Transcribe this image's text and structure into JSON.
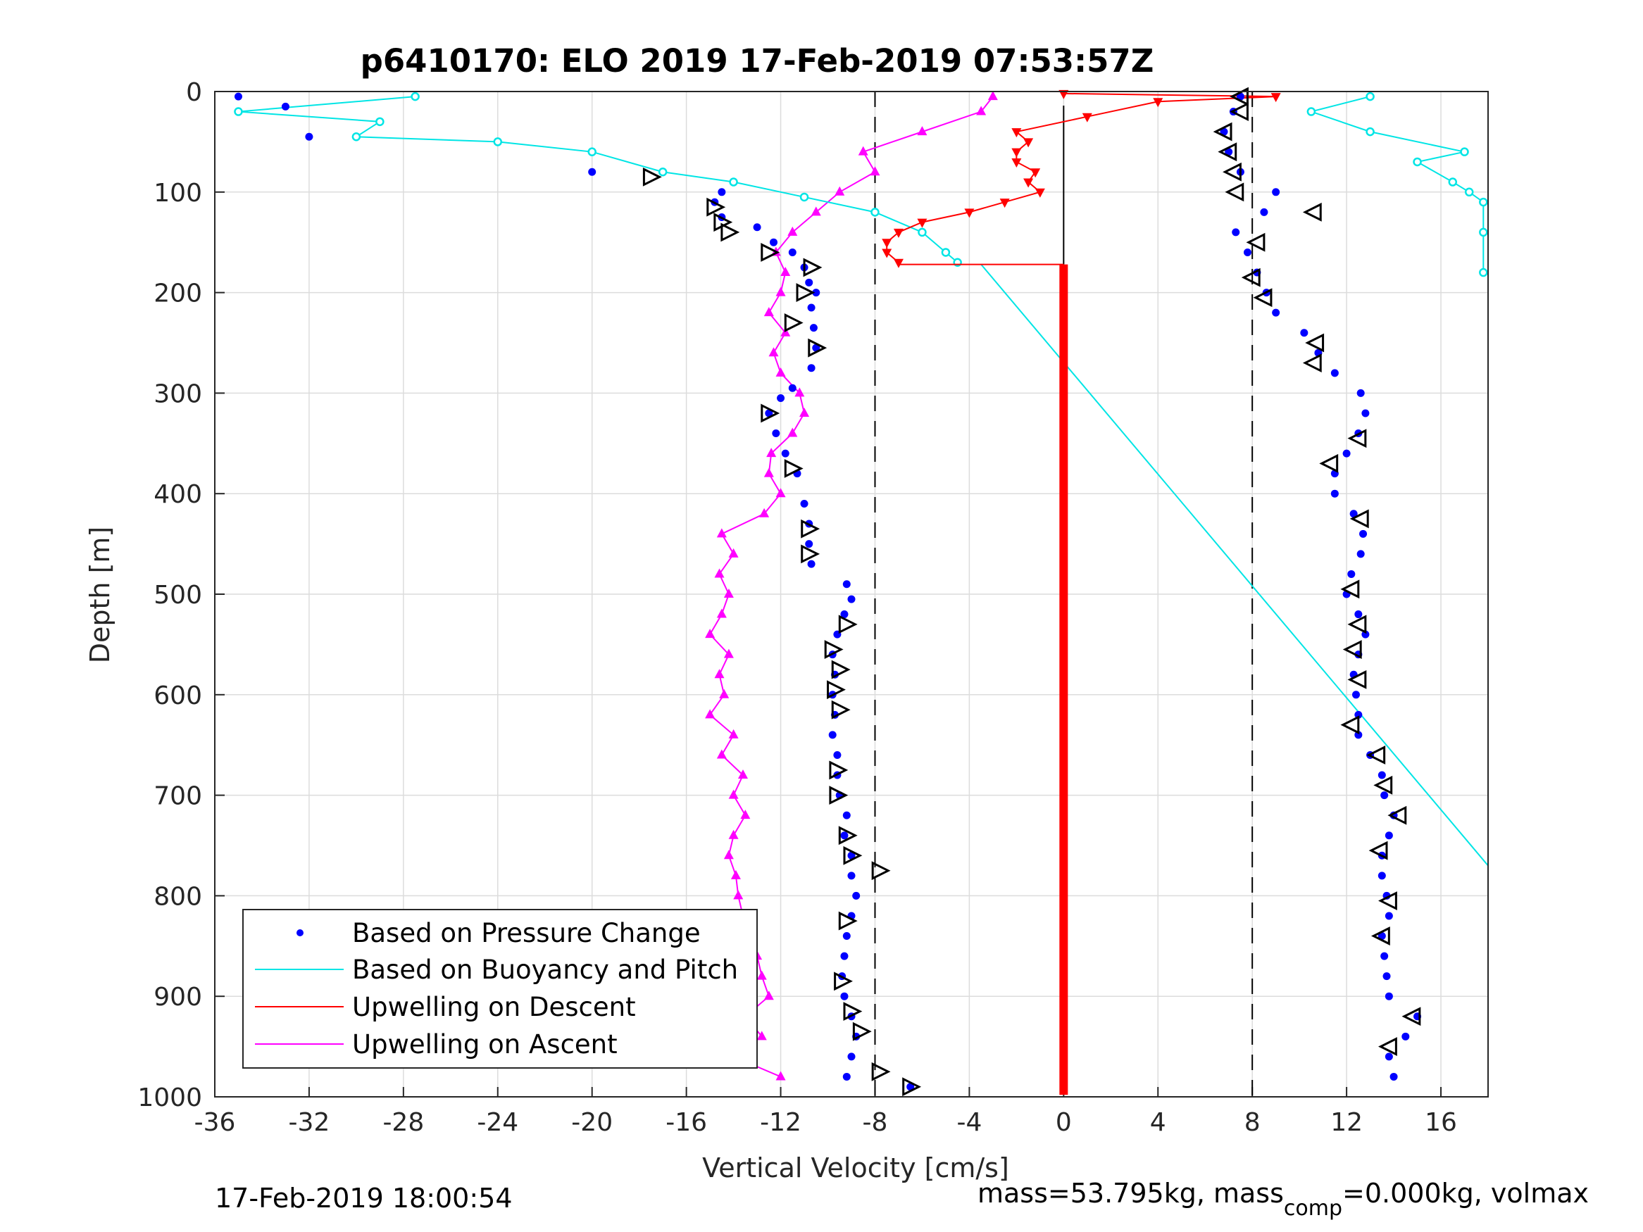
{
  "chart_data": {
    "type": "scatter",
    "title": "p6410170: ELO 2019 17-Feb-2019 07:53:57Z",
    "xlabel": "Vertical Velocity [cm/s]",
    "ylabel": "Depth [m]",
    "xlim": [
      -36,
      18
    ],
    "ylim": [
      0,
      1000
    ],
    "y_reversed": true,
    "grid": true,
    "legend_placement": "bottom-left",
    "xticks": [
      -36,
      -32,
      -28,
      -24,
      -20,
      -16,
      -12,
      -8,
      -4,
      0,
      4,
      8,
      12,
      16
    ],
    "yticks": [
      0,
      100,
      200,
      300,
      400,
      500,
      600,
      700,
      800,
      900,
      1000
    ],
    "reference_lines_x": [
      -8,
      0,
      8
    ],
    "colors": {
      "pressure": "#0000ff",
      "buoyancy": "#00e5e5",
      "upwelling_descent": "#ff0000",
      "upwelling_ascent": "#ff00ff"
    },
    "series": [
      {
        "name": "Based on Pressure Change",
        "marker": "dot",
        "descent": {
          "depth": [
            5,
            15,
            45,
            80,
            100,
            110,
            125,
            135,
            150,
            160,
            175,
            190,
            200,
            215,
            235,
            255,
            275,
            295,
            305,
            320,
            340,
            360,
            380,
            410,
            430,
            450,
            470,
            490,
            505,
            520,
            540,
            560,
            580,
            600,
            620,
            640,
            660,
            680,
            700,
            720,
            740,
            760,
            780,
            800,
            820,
            840,
            860,
            880,
            900,
            920,
            940,
            960,
            980,
            990
          ],
          "velocity": [
            -35,
            -33,
            -32,
            -20,
            -14.5,
            -14.8,
            -14.5,
            -13,
            -12.3,
            -11.5,
            -11,
            -10.8,
            -10.5,
            -10.7,
            -10.6,
            -10.5,
            -10.7,
            -11.5,
            -12,
            -12.5,
            -12.2,
            -11.8,
            -11.3,
            -11,
            -10.8,
            -10.8,
            -10.7,
            -9.2,
            -9,
            -9.3,
            -9.6,
            -9.8,
            -9.7,
            -9.8,
            -9.7,
            -9.8,
            -9.6,
            -9.6,
            -9.5,
            -9.2,
            -9.3,
            -9,
            -9,
            -8.8,
            -9,
            -9.2,
            -9.3,
            -9.4,
            -9.3,
            -9,
            -8.8,
            -9,
            -9.2,
            -6.5
          ]
        },
        "ascent": {
          "depth": [
            980,
            960,
            940,
            920,
            900,
            880,
            860,
            840,
            820,
            800,
            780,
            760,
            740,
            720,
            700,
            680,
            660,
            640,
            620,
            600,
            580,
            560,
            540,
            520,
            500,
            480,
            460,
            440,
            420,
            400,
            380,
            360,
            340,
            320,
            300,
            280,
            260,
            240,
            220,
            200,
            180,
            160,
            140,
            120,
            100,
            80,
            60,
            40,
            20,
            5
          ],
          "velocity": [
            14,
            13.8,
            14.5,
            15,
            13.8,
            13.7,
            13.6,
            13.5,
            13.8,
            13.7,
            13.5,
            13.5,
            13.8,
            14,
            13.6,
            13.5,
            13,
            12.5,
            12.5,
            12.4,
            12.3,
            12.5,
            12.8,
            12.5,
            12,
            12.2,
            12.6,
            12.7,
            12.3,
            11.5,
            11.5,
            12,
            12.5,
            12.8,
            12.6,
            11.5,
            10.8,
            10.2,
            9,
            8.6,
            8.2,
            7.8,
            7.3,
            8.5,
            9,
            7.5,
            7,
            6.8,
            7.2,
            7.5
          ]
        }
      },
      {
        "name": "Based on Buoyancy and Pitch",
        "marker": "circle",
        "descent": {
          "depth": [
            5,
            20,
            30,
            45,
            50,
            60,
            80,
            90,
            105,
            120,
            140,
            160,
            170
          ],
          "velocity": [
            -27.5,
            -35,
            -29,
            -30,
            -24,
            -20,
            -17,
            -14,
            -11,
            -8,
            -6,
            -5,
            -4.5
          ]
        },
        "ascent": {
          "depth": [
            5,
            20,
            40,
            60,
            70,
            90,
            100,
            110,
            140,
            180
          ],
          "velocity": [
            13,
            10.5,
            13,
            17,
            15,
            16.5,
            17.2,
            17.8,
            17.8,
            17.8
          ]
        },
        "model_line": {
          "depth": [
            172,
            770
          ],
          "velocity": [
            -3.5,
            18
          ]
        }
      },
      {
        "name": "Upwelling on Descent",
        "marker": "triangle-down",
        "depth": [
          2,
          5,
          10,
          25,
          40,
          50,
          60,
          70,
          80,
          90,
          100,
          110,
          120,
          130,
          140,
          150,
          160,
          170
        ],
        "velocity": [
          0,
          9,
          4,
          1,
          -2,
          -1.5,
          -2,
          -2,
          -1.2,
          -1.5,
          -1,
          -2.5,
          -4,
          -6,
          -7,
          -7.5,
          -7.5,
          -7
        ],
        "flat_segment": {
          "velocity": 0,
          "depth_range": [
            172,
            998
          ]
        }
      },
      {
        "name": "Upwelling on Ascent",
        "marker": "triangle-up",
        "depth": [
          980,
          960,
          940,
          920,
          900,
          880,
          860,
          840,
          820,
          800,
          780,
          760,
          740,
          720,
          700,
          680,
          660,
          640,
          620,
          600,
          580,
          560,
          540,
          520,
          500,
          480,
          460,
          440,
          420,
          400,
          380,
          360,
          340,
          320,
          300,
          280,
          260,
          240,
          220,
          200,
          180,
          160,
          140,
          120,
          100,
          80,
          60,
          40,
          20,
          5
        ],
        "velocity": [
          -12,
          -14,
          -12.8,
          -13.5,
          -12.5,
          -12.8,
          -13,
          -14,
          -13.6,
          -13.8,
          -13.9,
          -14.2,
          -14,
          -13.5,
          -14,
          -13.6,
          -14.5,
          -14,
          -15,
          -14.4,
          -14.6,
          -14.2,
          -15,
          -14.5,
          -14.2,
          -14.6,
          -14,
          -14.5,
          -12.7,
          -12,
          -12.5,
          -12.4,
          -11.5,
          -11,
          -11.2,
          -12,
          -12.3,
          -11.8,
          -12.5,
          -12,
          -11.8,
          -12.2,
          -11.5,
          -10.5,
          -9.5,
          -8,
          -8.5,
          -6,
          -3.5,
          -3
        ]
      }
    ],
    "direction_markers": {
      "descent_depths": [
        85,
        115,
        130,
        140,
        160,
        175,
        200,
        230,
        255,
        320,
        375,
        435,
        460,
        530,
        555,
        575,
        595,
        615,
        675,
        700,
        740,
        760,
        775,
        825,
        885,
        915,
        935,
        975,
        990
      ],
      "descent_velocity": [
        -17.5,
        -14.8,
        -14.5,
        -14.2,
        -12.5,
        -10.7,
        -11,
        -11.5,
        -10.5,
        -12.5,
        -11.5,
        -10.8,
        -10.8,
        -9.2,
        -9.8,
        -9.5,
        -9.7,
        -9.5,
        -9.6,
        -9.6,
        -9.2,
        -9,
        -7.8,
        -9.2,
        -9.4,
        -9,
        -8.6,
        -7.8,
        -6.5
      ],
      "ascent_depths": [
        950,
        920,
        840,
        805,
        755,
        720,
        690,
        660,
        630,
        585,
        555,
        530,
        495,
        425,
        370,
        345,
        270,
        250,
        205,
        185,
        150,
        120,
        100,
        80,
        60,
        40,
        20,
        5
      ],
      "ascent_velocity": [
        13.8,
        14.8,
        13.5,
        13.8,
        13.4,
        14.2,
        13.6,
        13.3,
        12.2,
        12.5,
        12.3,
        12.5,
        12.2,
        12.6,
        11.3,
        12.5,
        10.6,
        10.7,
        8.5,
        8,
        8.2,
        10.6,
        7.3,
        7.2,
        7,
        6.8,
        7.5,
        7.5
      ]
    }
  },
  "footer": {
    "timestamp": "17-Feb-2019 18:00:54",
    "mass_text": "mass=53.795kg, mass",
    "mass_sub": "comp",
    "mass_rest": "=0.000kg, volmax"
  }
}
